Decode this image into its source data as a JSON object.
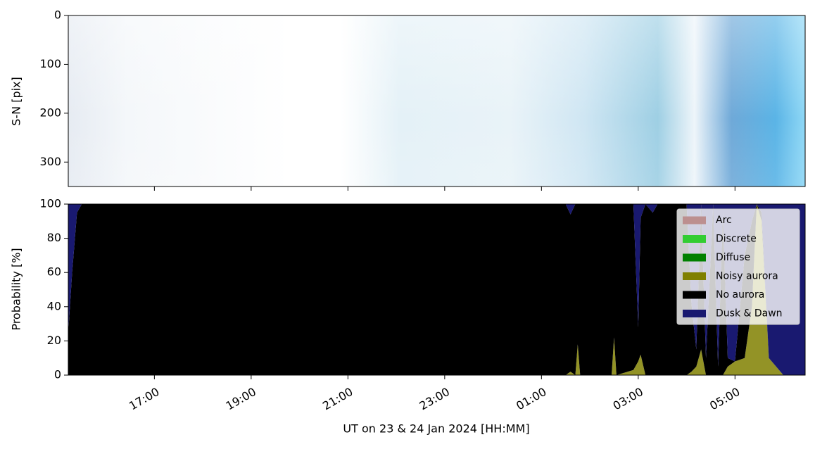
{
  "chart_data": [
    {
      "type": "image",
      "ylabel": "S-N [pix]",
      "ylim": [
        350,
        0
      ],
      "yticks": [
        0,
        100,
        200,
        300
      ]
    },
    {
      "type": "stacked_area",
      "xlabel": "UT on 23 & 24 Jan 2024 [HH:MM]",
      "ylabel": "Probability [%]",
      "xlim": [
        15.22,
        30.45
      ],
      "xticks": [
        {
          "value": 17,
          "label": "17:00"
        },
        {
          "value": 19,
          "label": "19:00"
        },
        {
          "value": 21,
          "label": "21:00"
        },
        {
          "value": 23,
          "label": "23:00"
        },
        {
          "value": 25,
          "label": "01:00"
        },
        {
          "value": 27,
          "label": "03:00"
        },
        {
          "value": 29,
          "label": "05:00"
        }
      ],
      "ylim": [
        0,
        100
      ],
      "yticks": [
        0,
        20,
        40,
        60,
        80,
        100
      ],
      "legend": "upper right",
      "x": [
        15.22,
        15.3,
        15.4,
        15.5,
        20,
        25.5,
        25.6,
        25.7,
        25.75,
        25.8,
        26.45,
        26.5,
        26.55,
        26.9,
        27.0,
        27.05,
        27.15,
        27.3,
        27.4,
        28.0,
        28.1,
        28.2,
        28.3,
        28.4,
        28.55,
        28.65,
        28.75,
        28.85,
        29.0,
        29.2,
        29.35,
        29.45,
        29.55,
        29.7,
        29.85,
        30.0,
        30.45
      ],
      "series": [
        {
          "name": "Arc",
          "color": "#bc8f8f",
          "values": [
            0,
            0,
            0,
            0,
            0,
            0,
            0,
            0,
            0,
            0,
            0,
            0,
            0,
            0,
            0,
            0,
            0,
            0,
            0,
            0,
            0,
            0,
            0,
            0,
            0,
            0,
            0,
            0,
            0,
            0,
            0,
            0,
            0,
            0,
            0,
            0,
            0
          ]
        },
        {
          "name": "Discrete",
          "color": "#32cd32",
          "values": [
            0,
            0,
            0,
            0,
            0,
            0,
            0,
            0,
            0,
            0,
            0,
            0,
            0,
            0,
            0,
            0,
            0,
            0,
            0,
            0,
            0,
            0,
            0,
            0,
            0,
            0,
            0,
            0,
            0,
            0,
            0,
            0,
            0,
            0,
            0,
            0,
            0
          ]
        },
        {
          "name": "Diffuse",
          "color": "#008000",
          "values": [
            0,
            0,
            0,
            0,
            0,
            0,
            0,
            0,
            0,
            0,
            0,
            0,
            0,
            0,
            0,
            0,
            0,
            0,
            0,
            0,
            0,
            0,
            0,
            0,
            0,
            0,
            0,
            0,
            0,
            0,
            0,
            0,
            0,
            0,
            0,
            0,
            0
          ]
        },
        {
          "name": "Noisy aurora",
          "color": "#808000",
          "values": [
            0,
            0,
            0,
            0,
            0,
            0,
            2,
            0,
            18,
            0,
            0,
            22,
            0,
            3,
            8,
            12,
            0,
            0,
            0,
            0,
            2,
            5,
            15,
            0,
            0,
            0,
            0,
            5,
            8,
            10,
            40,
            100,
            90,
            10,
            5,
            0,
            0
          ]
        },
        {
          "name": "No aurora",
          "color": "#000000",
          "values": [
            25,
            60,
            95,
            100,
            100,
            100,
            92,
            100,
            82,
            100,
            100,
            78,
            100,
            97,
            20,
            80,
            100,
            95,
            100,
            100,
            40,
            10,
            85,
            10,
            100,
            5,
            95,
            5,
            0,
            60,
            50,
            0,
            5,
            0,
            0,
            0,
            0
          ]
        },
        {
          "name": "Dusk & Dawn",
          "color": "#191970",
          "values": [
            75,
            40,
            5,
            0,
            0,
            0,
            6,
            0,
            0,
            0,
            0,
            0,
            0,
            0,
            72,
            8,
            0,
            5,
            0,
            0,
            58,
            85,
            0,
            90,
            0,
            95,
            5,
            90,
            92,
            30,
            10,
            0,
            5,
            90,
            95,
            100,
            100
          ]
        }
      ]
    }
  ]
}
